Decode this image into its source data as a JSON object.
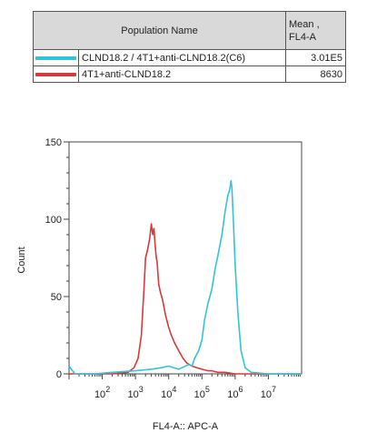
{
  "legend": {
    "headers": [
      "Population Name",
      "Mean ,\nFL4-A"
    ],
    "rows": [
      {
        "name": "CLND18.2 / 4T1+anti-CLND18.2(C6)",
        "mean": "3.01E5",
        "color": "#33c3dc"
      },
      {
        "name": "4T1+anti-CLND18.2",
        "mean": "8630",
        "color": "#d63a3a"
      }
    ]
  },
  "chart_data": {
    "type": "line",
    "xlabel": "FL4-A:: APC-A",
    "ylabel": "Count",
    "x_scale": "log",
    "xlim": [
      10,
      100000000
    ],
    "ylim": [
      0,
      150
    ],
    "y_ticks": [
      0,
      50,
      100,
      150
    ],
    "x_ticks": [
      {
        "value": 100,
        "base": "10",
        "exp": "2"
      },
      {
        "value": 1000,
        "base": "10",
        "exp": "3"
      },
      {
        "value": 10000,
        "base": "10",
        "exp": "4"
      },
      {
        "value": 100000,
        "base": "10",
        "exp": "5"
      },
      {
        "value": 1000000,
        "base": "10",
        "exp": "6"
      },
      {
        "value": 10000000,
        "base": "10",
        "exp": "7"
      }
    ],
    "series": [
      {
        "name": "4T1+anti-CLND18.2",
        "color": "#d63a3a",
        "x": [
          10,
          50,
          200,
          600,
          900,
          1200,
          1500,
          1800,
          2000,
          2300,
          2700,
          3000,
          3300,
          3600,
          3900,
          4200,
          4500,
          5000,
          5600,
          6500,
          8000,
          10000,
          12000,
          15000,
          20000,
          27000,
          35000,
          50000,
          70000,
          100000,
          150000,
          200000,
          300000,
          500000,
          1000000,
          10000000,
          100000000
        ],
        "y": [
          0,
          0,
          0,
          1,
          4,
          10,
          25,
          55,
          75,
          80,
          88,
          97,
          90,
          94,
          83,
          76,
          72,
          58,
          53,
          48,
          38,
          30,
          25,
          20,
          15,
          10,
          7,
          5,
          4,
          3,
          2,
          2,
          1,
          1,
          0,
          0,
          0
        ]
      },
      {
        "name": "CLND18.2 / 4T1+anti-CLND18.2(C6)",
        "color": "#33c3dc",
        "x": [
          10,
          15,
          25,
          60,
          200,
          1000,
          3000,
          6000,
          10000,
          20000,
          40000,
          50000,
          60000,
          80000,
          100000,
          120000,
          150000,
          200000,
          250000,
          300000,
          400000,
          450000,
          500000,
          600000,
          700000,
          750000,
          800000,
          900000,
          1000000,
          1200000,
          1500000,
          2000000,
          3000000,
          10000000,
          100000000
        ],
        "y": [
          5,
          0,
          0,
          0,
          1,
          2,
          3,
          4,
          5,
          3,
          6,
          5,
          10,
          15,
          22,
          35,
          45,
          55,
          68,
          76,
          90,
          98,
          105,
          115,
          120,
          125,
          120,
          95,
          70,
          40,
          15,
          4,
          1,
          0,
          0
        ]
      }
    ]
  }
}
